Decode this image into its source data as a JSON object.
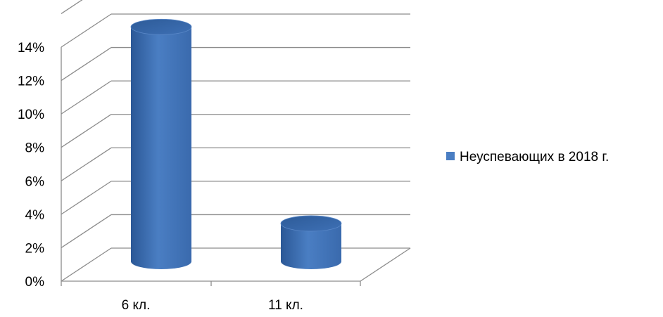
{
  "chart_data": {
    "type": "bar",
    "style": "3d-cylinder",
    "categories": [
      "6 кл.",
      "11 кл."
    ],
    "series": [
      {
        "name": "Неуспевающих в 2018 г.",
        "values": [
          14.2,
          2.3
        ]
      }
    ],
    "ylim": [
      0,
      14
    ],
    "yticks": [
      "0%",
      "2%",
      "4%",
      "6%",
      "8%",
      "10%",
      "12%",
      "14%"
    ],
    "grid": true,
    "legend_position": "right",
    "colors": {
      "bar": "#4a7ec3",
      "bar_dark": "#2b5896",
      "grid": "#8c8c8c"
    }
  }
}
